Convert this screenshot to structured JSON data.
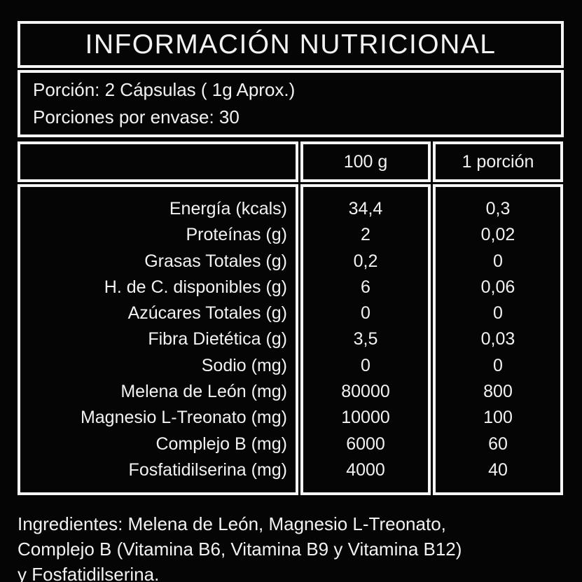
{
  "label": {
    "title": "INFORMACIÓN NUTRICIONAL",
    "serving": {
      "line1": "Porción: 2 Cápsulas ( 1g Aprox.)",
      "line2": "Porciones por envase: 30"
    },
    "table": {
      "columns": [
        "100 g",
        "1 porción"
      ],
      "rows": [
        {
          "label": "Energía (kcals)",
          "per_100g": "34,4",
          "per_portion": "0,3"
        },
        {
          "label": "Proteínas (g)",
          "per_100g": "2",
          "per_portion": "0,02"
        },
        {
          "label": "Grasas Totales (g)",
          "per_100g": "0,2",
          "per_portion": "0"
        },
        {
          "label": "H. de C. disponibles (g)",
          "per_100g": "6",
          "per_portion": "0,06"
        },
        {
          "label": "Azúcares Totales (g)",
          "per_100g": "0",
          "per_portion": "0"
        },
        {
          "label": "Fibra Dietética (g)",
          "per_100g": "3,5",
          "per_portion": "0,03"
        },
        {
          "label": "Sodio (mg)",
          "per_100g": "0",
          "per_portion": "0"
        },
        {
          "label": "Melena de León (mg)",
          "per_100g": "80000",
          "per_portion": "800"
        },
        {
          "label": "Magnesio L-Treonato (mg)",
          "per_100g": "10000",
          "per_portion": "100"
        },
        {
          "label": "Complejo B (mg)",
          "per_100g": "6000",
          "per_portion": "60"
        },
        {
          "label": "Fosfatidilserina (mg)",
          "per_100g": "4000",
          "per_portion": "40"
        }
      ]
    },
    "ingredients": {
      "lines": [
        "Ingredientes: Melena de León, Magnesio L-Treonato,",
        "Complejo B (Vitamina B6, Vitamina B9 y Vitamina B12)",
        "y Fosfatidilserina."
      ]
    },
    "colors": {
      "background": "#050505",
      "border": "#f5f5f5",
      "text": "#f2f2f2"
    }
  }
}
